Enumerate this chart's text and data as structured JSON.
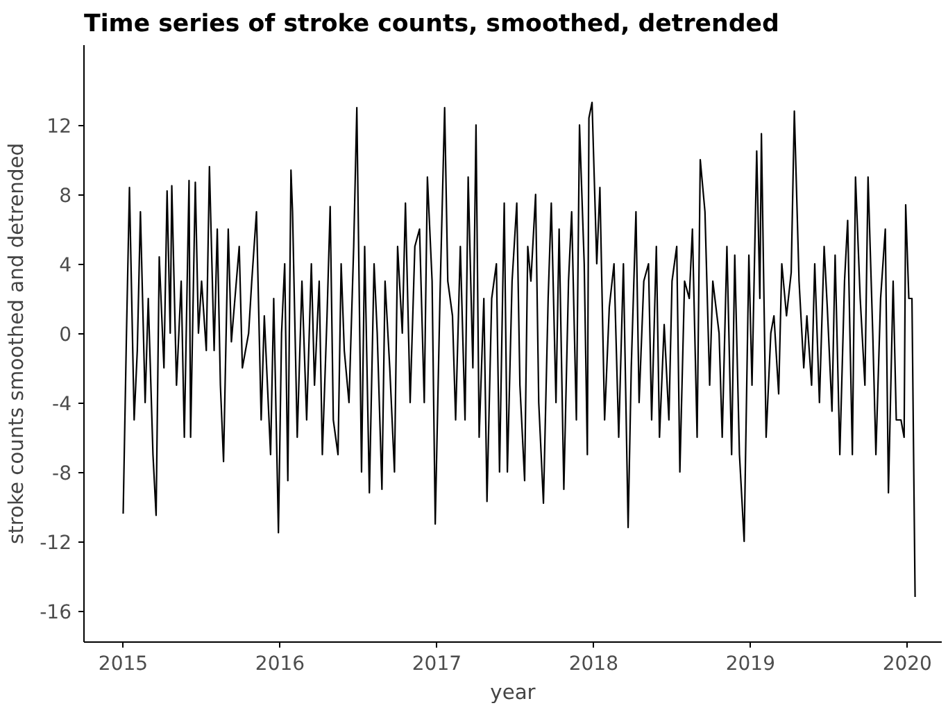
{
  "chart_data": {
    "type": "line",
    "title": "Time series of stroke counts, smoothed, detrended",
    "xlabel": "year",
    "ylabel": "stroke counts smoothed and detrended",
    "x": [
      2015.0,
      2015.02,
      2015.04,
      2015.07,
      2015.09,
      2015.11,
      2015.14,
      2015.16,
      2015.19,
      2015.21,
      2015.23,
      2015.26,
      2015.28,
      2015.3,
      2015.31,
      2015.34,
      2015.37,
      2015.39,
      2015.42,
      2015.43,
      2015.46,
      2015.48,
      2015.5,
      2015.53,
      2015.55,
      2015.58,
      2015.6,
      2015.62,
      2015.64,
      2015.67,
      2015.69,
      2015.74,
      2015.76,
      2015.8,
      2015.82,
      2015.85,
      2015.88,
      2015.9,
      2015.94,
      2015.96,
      2015.99,
      2016.01,
      2016.03,
      2016.05,
      2016.07,
      2016.08,
      2016.11,
      2016.14,
      2016.17,
      2016.2,
      2016.22,
      2016.25,
      2016.27,
      2016.3,
      2016.32,
      2016.34,
      2016.37,
      2016.39,
      2016.41,
      2016.44,
      2016.47,
      2016.49,
      2016.52,
      2016.54,
      2016.57,
      2016.6,
      2016.62,
      2016.65,
      2016.67,
      2016.7,
      2016.73,
      2016.75,
      2016.78,
      2016.8,
      2016.83,
      2016.86,
      2016.89,
      2016.92,
      2016.94,
      2016.97,
      2016.99,
      2017.02,
      2017.05,
      2017.07,
      2017.1,
      2017.12,
      2017.15,
      2017.18,
      2017.2,
      2017.23,
      2017.25,
      2017.27,
      2017.3,
      2017.32,
      2017.35,
      2017.38,
      2017.4,
      2017.43,
      2017.45,
      2017.48,
      2017.51,
      2017.53,
      2017.56,
      2017.58,
      2017.6,
      2017.63,
      2017.65,
      2017.68,
      2017.71,
      2017.73,
      2017.76,
      2017.78,
      2017.81,
      2017.84,
      2017.86,
      2017.89,
      2017.91,
      2017.94,
      2017.96,
      2017.97,
      2017.99,
      2018.02,
      2018.04,
      2018.07,
      2018.1,
      2018.13,
      2018.16,
      2018.19,
      2018.22,
      2018.24,
      2018.27,
      2018.29,
      2018.32,
      2018.35,
      2018.37,
      2018.4,
      2018.42,
      2018.45,
      2018.48,
      2018.5,
      2018.53,
      2018.55,
      2018.58,
      2018.61,
      2018.63,
      2018.66,
      2018.68,
      2018.71,
      2018.74,
      2018.76,
      2018.8,
      2018.82,
      2018.85,
      2018.88,
      2018.9,
      2018.93,
      2018.96,
      2018.99,
      2019.01,
      2019.04,
      2019.06,
      2019.07,
      2019.1,
      2019.13,
      2019.15,
      2019.18,
      2019.2,
      2019.23,
      2019.26,
      2019.28,
      2019.31,
      2019.34,
      2019.36,
      2019.39,
      2019.41,
      2019.44,
      2019.47,
      2019.49,
      2019.52,
      2019.54,
      2019.57,
      2019.6,
      2019.62,
      2019.65,
      2019.67,
      2019.7,
      2019.73,
      2019.75,
      2019.78,
      2019.8,
      2019.83,
      2019.86,
      2019.88,
      2019.91,
      2019.93,
      2019.96,
      2019.98,
      2019.99,
      2020.01,
      2020.03,
      2020.05
    ],
    "series": [
      {
        "color": "#000000",
        "values": [
          -10.4,
          -0.5,
          8.4,
          -5,
          -1,
          7,
          -4,
          2,
          -7,
          -10.5,
          4.4,
          -2,
          8.2,
          0,
          8.5,
          -3,
          3,
          -6,
          8.8,
          -6,
          8.7,
          0,
          3,
          -1,
          9.6,
          -1,
          6,
          -3,
          -7.4,
          6,
          -0.5,
          5,
          -2,
          0,
          3,
          7,
          -5,
          1,
          -7,
          2,
          -11.5,
          0,
          4,
          -8.5,
          9.4,
          7,
          -6,
          3,
          -5,
          4,
          -3,
          3,
          -7,
          1,
          7.3,
          -5,
          -7,
          4,
          -1,
          -4,
          5,
          13,
          -8,
          5,
          -9.2,
          4,
          0,
          -9,
          3,
          -2,
          -8,
          5,
          0,
          7.5,
          -4,
          5,
          6,
          -4,
          9,
          3,
          -11,
          2,
          13,
          3,
          1,
          -5,
          5,
          -5,
          9,
          -2,
          12,
          -6,
          2,
          -9.7,
          2,
          4,
          -8,
          7.5,
          -8,
          3,
          7.5,
          -3,
          -8.5,
          5,
          3,
          8,
          -4,
          -9.8,
          2,
          7.5,
          -4,
          6,
          -9,
          3,
          7,
          -5,
          12,
          4,
          -7,
          12.4,
          13.3,
          4,
          8.4,
          -5,
          1.5,
          4,
          -6,
          4,
          -11.2,
          -2,
          7,
          -4,
          3,
          4,
          -5,
          5,
          -6,
          0.5,
          -5,
          3,
          5,
          -8,
          3,
          2,
          6,
          -6,
          10,
          7,
          -3,
          3,
          0,
          -6,
          5,
          -7,
          4.5,
          -7,
          -12,
          4.5,
          -3,
          10.5,
          2,
          11.5,
          -6,
          0,
          1,
          -3.5,
          4,
          1,
          3.5,
          12.8,
          3,
          -2,
          1,
          -3,
          4,
          -4,
          5,
          1.5,
          -4.5,
          4.5,
          -7,
          3,
          6.5,
          -7,
          9,
          2,
          -3,
          9,
          0,
          -7,
          2,
          6,
          -9.2,
          3,
          -5,
          -5,
          -6,
          7.4,
          2,
          2,
          -15.2
        ]
      }
    ],
    "xlim": [
      2014.75,
      2020.22
    ],
    "ylim": [
      -17.8,
      16.6
    ],
    "xticks": [
      2015,
      2016,
      2017,
      2018,
      2019,
      2020
    ],
    "yticks": [
      -16,
      -12,
      -8,
      -4,
      0,
      4,
      8,
      12
    ],
    "grid": false,
    "marker": "none",
    "line_style": "solid"
  }
}
